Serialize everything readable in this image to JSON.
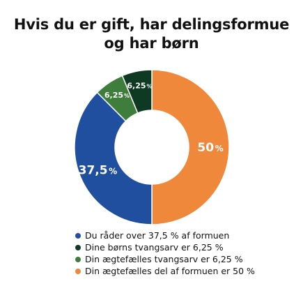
{
  "chart_data": {
    "type": "pie",
    "variant": "donut",
    "title_lines": [
      "Hvis du er gift, har delingsformue",
      "og har børn"
    ],
    "slices": [
      {
        "value": 50,
        "label": "50",
        "unit": "%",
        "color": "#f0883c"
      },
      {
        "value": 37.5,
        "label": "37,5",
        "unit": "%",
        "color": "#1f4f9e"
      },
      {
        "value": 6.25,
        "label": "6,25",
        "unit": "%",
        "color": "#3e7d3c"
      },
      {
        "value": 6.25,
        "label": "6,25",
        "unit": "%",
        "color": "#0e3a24"
      }
    ],
    "legend": [
      {
        "text": "Du råder over 37,5 % af formuen",
        "color": "#1f4f9e"
      },
      {
        "text": "Dine børns tvangsarv er 6,25 %",
        "color": "#0e3a24"
      },
      {
        "text": "Din ægtefælles tvangsarv er 6,25 %",
        "color": "#3e7d3c"
      },
      {
        "text": "Din ægtefælles del af formuen er 50 %",
        "color": "#f0883c"
      }
    ],
    "legend_position": "bottom"
  }
}
